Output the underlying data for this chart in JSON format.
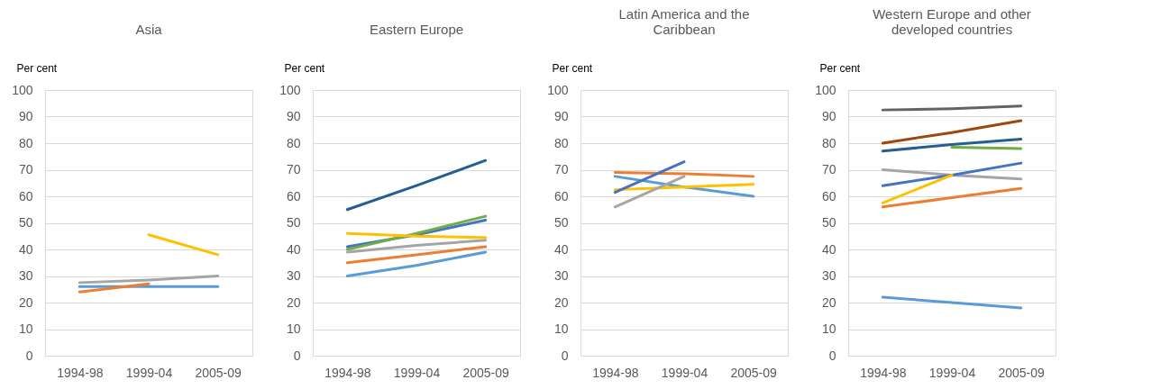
{
  "chart_data": [
    {
      "type": "line",
      "title": "Asia",
      "ylabel": "Per cent",
      "categories": [
        "1994-98",
        "1999-04",
        "2005-09"
      ],
      "ylim": [
        0,
        100
      ],
      "yticks": [
        0,
        10,
        20,
        30,
        40,
        50,
        60,
        70,
        80,
        90,
        100
      ],
      "grid": "y",
      "legend": false,
      "series": [
        {
          "color": "#a5a5a5",
          "values": [
            27.5,
            28.5,
            30
          ]
        },
        {
          "color": "#5b9bd5",
          "values": [
            26,
            26,
            26
          ]
        },
        {
          "color": "#ed7d31",
          "values": [
            24,
            27,
            null
          ]
        },
        {
          "color": "#ffc000",
          "values": [
            null,
            45.5,
            38
          ]
        }
      ]
    },
    {
      "type": "line",
      "title": "Eastern Europe",
      "ylabel": "Per cent",
      "categories": [
        "1994-98",
        "1999-04",
        "2005-09"
      ],
      "ylim": [
        0,
        100
      ],
      "yticks": [
        0,
        10,
        20,
        30,
        40,
        50,
        60,
        70,
        80,
        90,
        100
      ],
      "grid": "y",
      "legend": false,
      "series": [
        {
          "color": "#255e91",
          "values": [
            55,
            64,
            73.5
          ]
        },
        {
          "color": "#4472c4",
          "values": [
            41,
            45.5,
            51
          ]
        },
        {
          "color": "#70ad47",
          "values": [
            40,
            46,
            52.5
          ]
        },
        {
          "color": "#ffc000",
          "values": [
            46,
            45,
            44.5
          ]
        },
        {
          "color": "#a5a5a5",
          "values": [
            39,
            41.5,
            43.5
          ]
        },
        {
          "color": "#ed7d31",
          "values": [
            35,
            38,
            41
          ]
        },
        {
          "color": "#5b9bd5",
          "values": [
            30,
            34,
            39
          ]
        }
      ]
    },
    {
      "type": "line",
      "title": "Latin America and the Caribbean",
      "ylabel": "Per cent",
      "categories": [
        "1994-98",
        "1999-04",
        "2005-09"
      ],
      "ylim": [
        0,
        100
      ],
      "yticks": [
        0,
        10,
        20,
        30,
        40,
        50,
        60,
        70,
        80,
        90,
        100
      ],
      "grid": "y",
      "legend": false,
      "series": [
        {
          "color": "#ed7d31",
          "values": [
            69,
            68.5,
            67.5
          ]
        },
        {
          "color": "#5b9bd5",
          "values": [
            67.5,
            63.5,
            60
          ]
        },
        {
          "color": "#ffc000",
          "values": [
            62.5,
            63.5,
            64.5
          ]
        },
        {
          "color": "#4472c4",
          "values": [
            61.5,
            73,
            null
          ]
        },
        {
          "color": "#a5a5a5",
          "values": [
            56,
            67.5,
            null
          ]
        }
      ]
    },
    {
      "type": "line",
      "title": "Western Europe and other developed countries",
      "ylabel": "Per cent",
      "categories": [
        "1994-98",
        "1999-04",
        "2005-09"
      ],
      "ylim": [
        0,
        100
      ],
      "yticks": [
        0,
        10,
        20,
        30,
        40,
        50,
        60,
        70,
        80,
        90,
        100
      ],
      "grid": "y",
      "legend": false,
      "series": [
        {
          "color": "#636363",
          "values": [
            92.5,
            93,
            94
          ]
        },
        {
          "color": "#9e480e",
          "values": [
            80,
            84,
            88.5
          ]
        },
        {
          "color": "#255e91",
          "values": [
            77,
            79.5,
            81.5
          ]
        },
        {
          "color": "#70ad47",
          "values": [
            null,
            78.5,
            78
          ]
        },
        {
          "color": "#a5a5a5",
          "values": [
            70,
            68,
            66.5
          ]
        },
        {
          "color": "#4472c4",
          "values": [
            64,
            68,
            72.5
          ]
        },
        {
          "color": "#ffc000",
          "values": [
            57.5,
            68,
            null
          ]
        },
        {
          "color": "#ed7d31",
          "values": [
            56,
            59.5,
            63
          ]
        },
        {
          "color": "#5b9bd5",
          "values": [
            22,
            20,
            18
          ]
        }
      ]
    }
  ]
}
